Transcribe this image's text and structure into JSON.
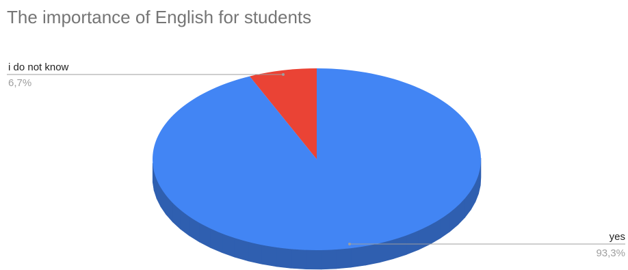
{
  "chart_data": {
    "type": "pie",
    "title": "The importance of English for students",
    "is_3d": true,
    "legend": "none",
    "slices": [
      {
        "label": "yes",
        "value": 93.3,
        "value_label": "93,3%",
        "color": "#4285f4",
        "side_color": "#2f5fb0"
      },
      {
        "label": "i do not know",
        "value": 6.7,
        "value_label": "6,7%",
        "color": "#ea4335",
        "side_color": "#b3352a"
      }
    ]
  }
}
